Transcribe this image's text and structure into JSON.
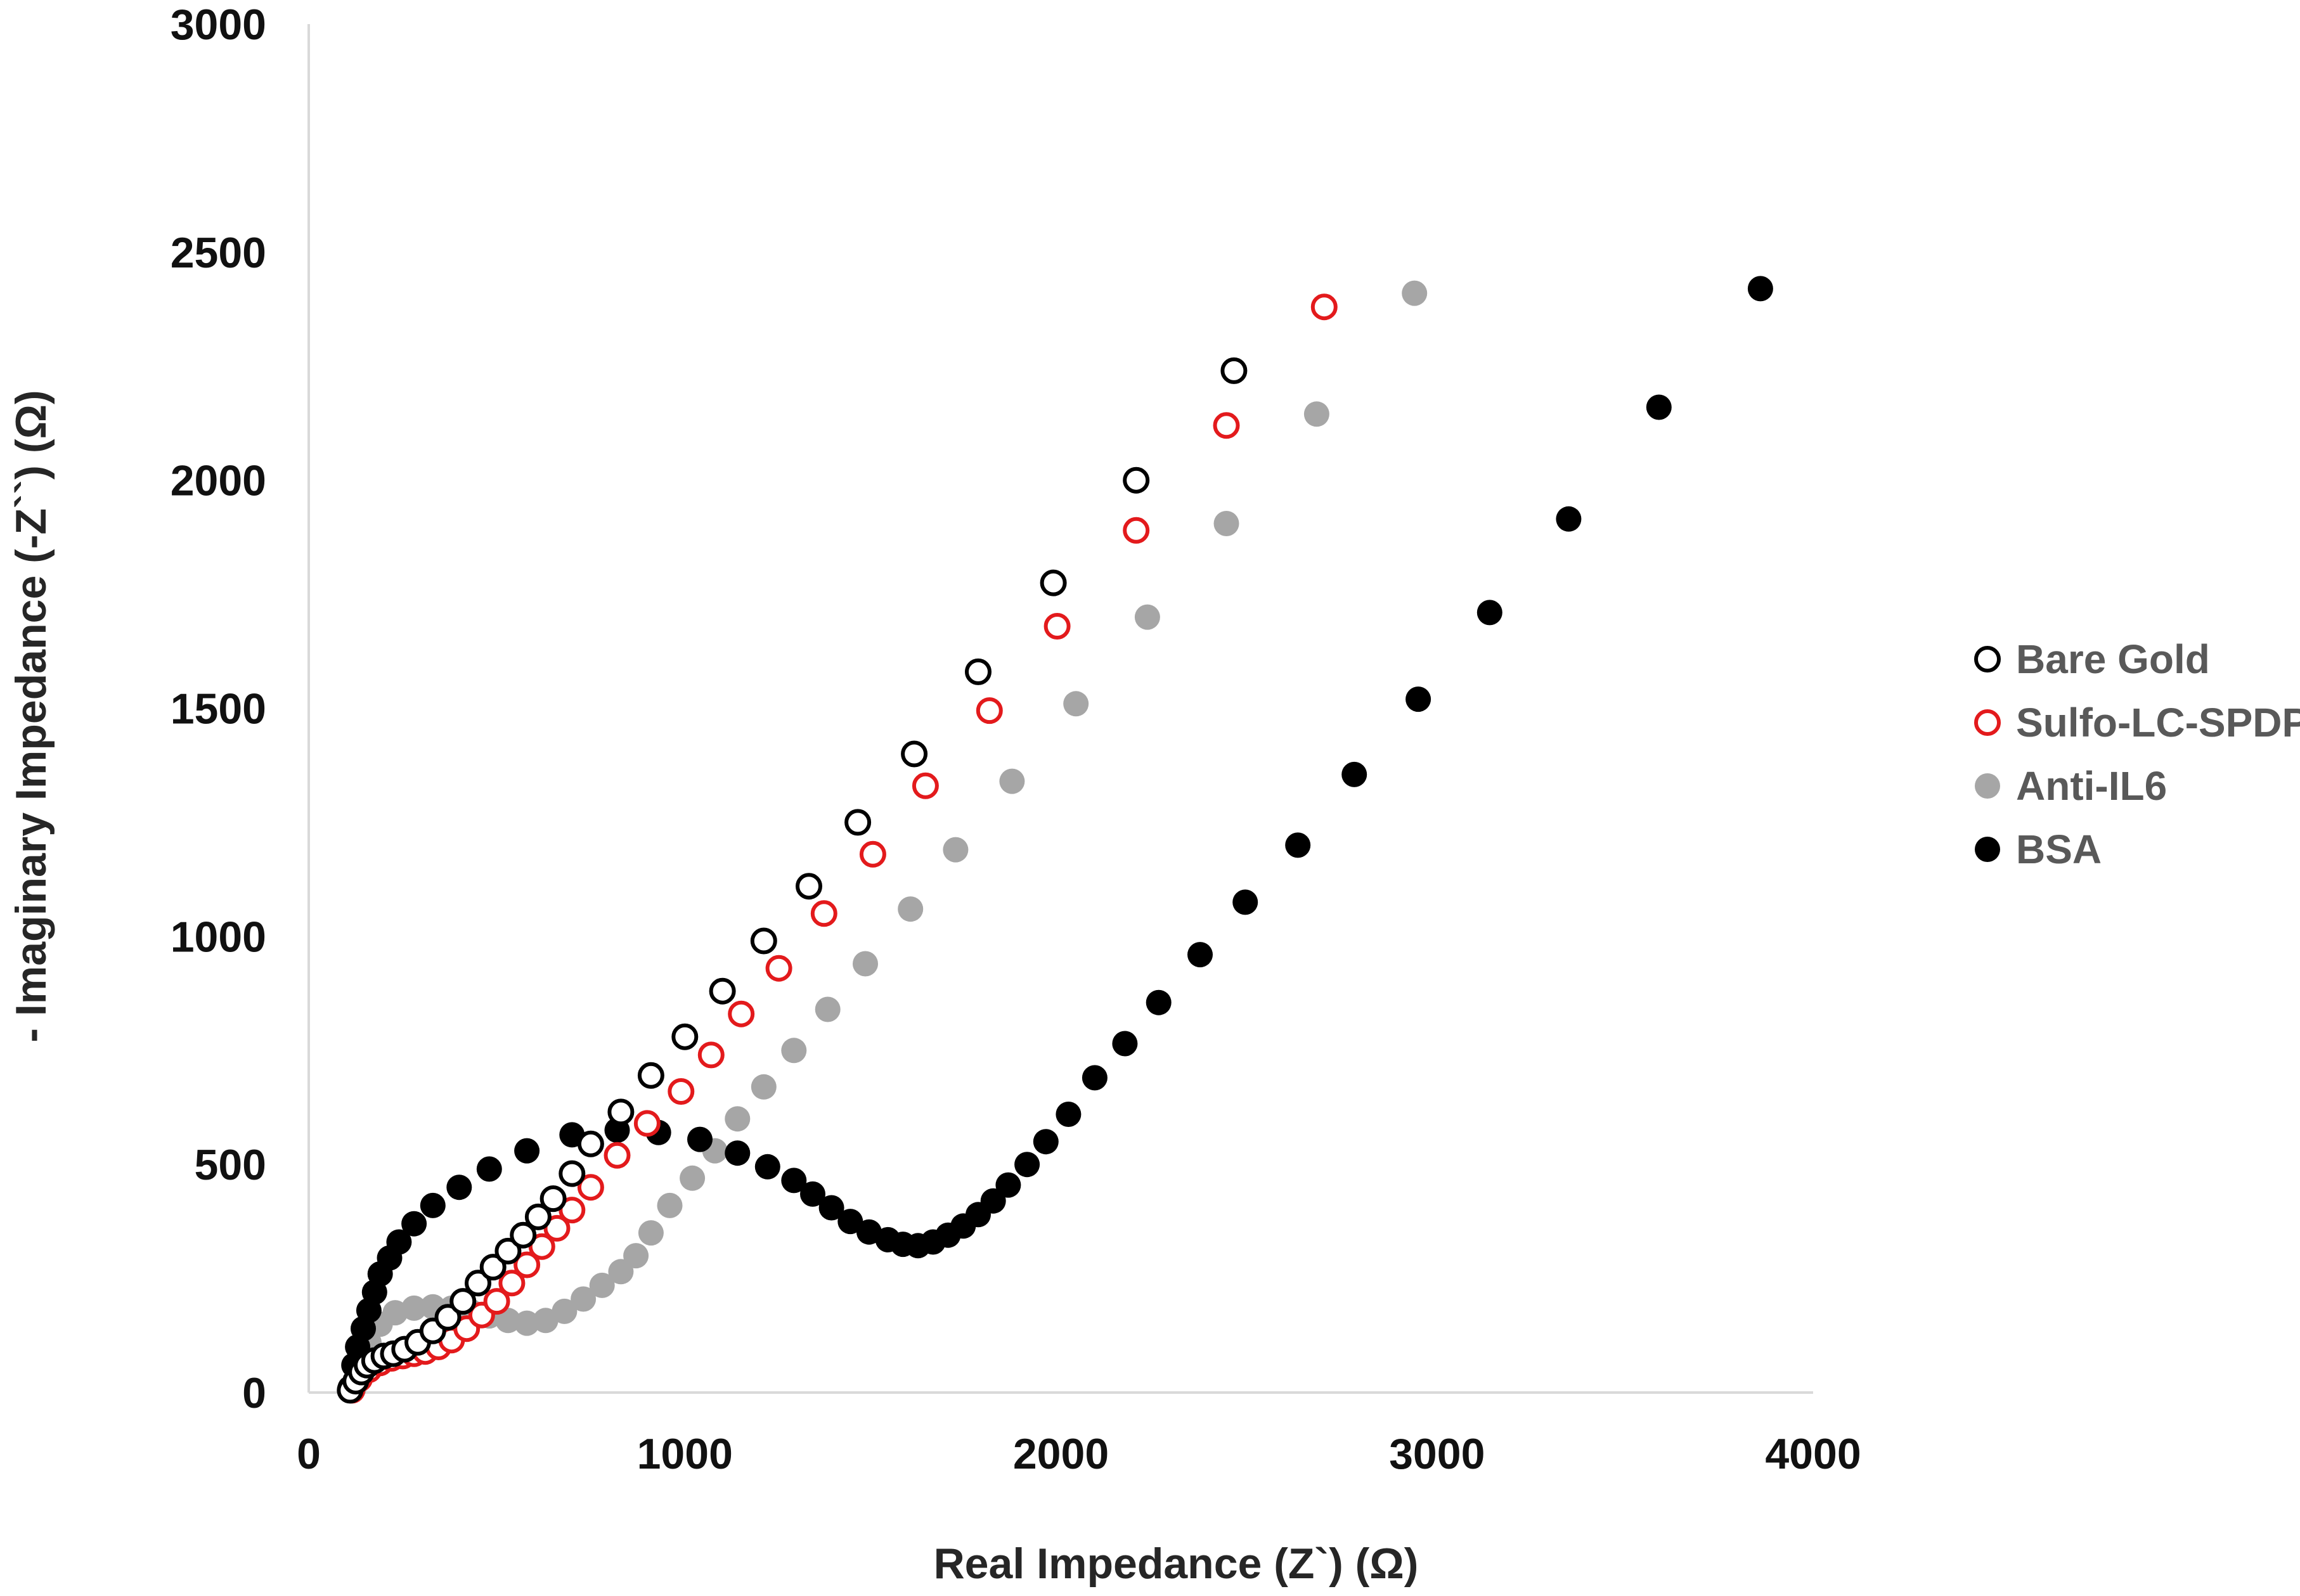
{
  "chart_data": {
    "type": "scatter",
    "title": "",
    "xlabel": "Real Impedance (Z`) (Ω)",
    "ylabel": "- Imaginary Impedance (-Z``) (Ω)",
    "xlim": [
      0,
      4000
    ],
    "ylim": [
      0,
      3000
    ],
    "xticks": [
      "0",
      "1000",
      "2000",
      "3000",
      "4000"
    ],
    "yticks": [
      "0",
      "500",
      "1000",
      "1500",
      "2000",
      "2500",
      "3000"
    ],
    "grid": false,
    "legend_position": "right",
    "series": [
      {
        "name": "Bare Gold",
        "marker": "open-circle",
        "color": "#000000",
        "points": [
          [
            110,
            5
          ],
          [
            125,
            25
          ],
          [
            140,
            45
          ],
          [
            155,
            60
          ],
          [
            175,
            70
          ],
          [
            200,
            80
          ],
          [
            225,
            85
          ],
          [
            255,
            95
          ],
          [
            290,
            110
          ],
          [
            330,
            135
          ],
          [
            370,
            165
          ],
          [
            410,
            200
          ],
          [
            450,
            240
          ],
          [
            490,
            275
          ],
          [
            530,
            310
          ],
          [
            570,
            345
          ],
          [
            610,
            385
          ],
          [
            650,
            425
          ],
          [
            700,
            480
          ],
          [
            750,
            545
          ],
          [
            830,
            615
          ],
          [
            910,
            695
          ],
          [
            1000,
            780
          ],
          [
            1100,
            880
          ],
          [
            1210,
            990
          ],
          [
            1330,
            1110
          ],
          [
            1460,
            1250
          ],
          [
            1610,
            1400
          ],
          [
            1780,
            1580
          ],
          [
            1980,
            1775
          ],
          [
            2200,
            2000
          ],
          [
            2460,
            2240
          ]
        ]
      },
      {
        "name": "Sulfo-LC-SPDP",
        "marker": "open-circle",
        "color": "#e31a1c",
        "points": [
          [
            115,
            5
          ],
          [
            135,
            30
          ],
          [
            160,
            50
          ],
          [
            190,
            65
          ],
          [
            220,
            75
          ],
          [
            250,
            80
          ],
          [
            280,
            85
          ],
          [
            310,
            90
          ],
          [
            345,
            100
          ],
          [
            380,
            115
          ],
          [
            420,
            140
          ],
          [
            460,
            170
          ],
          [
            500,
            200
          ],
          [
            540,
            240
          ],
          [
            580,
            280
          ],
          [
            620,
            320
          ],
          [
            660,
            360
          ],
          [
            700,
            400
          ],
          [
            750,
            450
          ],
          [
            820,
            520
          ],
          [
            900,
            590
          ],
          [
            990,
            660
          ],
          [
            1070,
            740
          ],
          [
            1150,
            830
          ],
          [
            1250,
            930
          ],
          [
            1370,
            1050
          ],
          [
            1500,
            1180
          ],
          [
            1640,
            1330
          ],
          [
            1810,
            1495
          ],
          [
            1990,
            1680
          ],
          [
            2200,
            1890
          ],
          [
            2440,
            2120
          ],
          [
            2700,
            2380
          ]
        ]
      },
      {
        "name": "Anti-IL6",
        "marker": "filled-circle",
        "color": "#a6a6a6",
        "points": [
          [
            120,
            10
          ],
          [
            140,
            60
          ],
          [
            160,
            110
          ],
          [
            190,
            150
          ],
          [
            230,
            175
          ],
          [
            280,
            185
          ],
          [
            330,
            188
          ],
          [
            380,
            185
          ],
          [
            430,
            178
          ],
          [
            480,
            168
          ],
          [
            530,
            158
          ],
          [
            580,
            152
          ],
          [
            630,
            158
          ],
          [
            680,
            178
          ],
          [
            730,
            205
          ],
          [
            780,
            235
          ],
          [
            830,
            265
          ],
          [
            870,
            300
          ],
          [
            910,
            350
          ],
          [
            960,
            410
          ],
          [
            1020,
            470
          ],
          [
            1080,
            530
          ],
          [
            1140,
            600
          ],
          [
            1210,
            670
          ],
          [
            1290,
            750
          ],
          [
            1380,
            840
          ],
          [
            1480,
            940
          ],
          [
            1600,
            1060
          ],
          [
            1720,
            1190
          ],
          [
            1870,
            1340
          ],
          [
            2040,
            1510
          ],
          [
            2230,
            1700
          ],
          [
            2440,
            1905
          ],
          [
            2680,
            2145
          ],
          [
            2940,
            2410
          ]
        ]
      },
      {
        "name": "BSA",
        "marker": "filled-circle",
        "color": "#000000",
        "points": [
          [
            110,
            10
          ],
          [
            120,
            60
          ],
          [
            130,
            100
          ],
          [
            145,
            140
          ],
          [
            160,
            180
          ],
          [
            175,
            220
          ],
          [
            190,
            260
          ],
          [
            215,
            295
          ],
          [
            240,
            330
          ],
          [
            280,
            370
          ],
          [
            330,
            410
          ],
          [
            400,
            450
          ],
          [
            480,
            490
          ],
          [
            580,
            530
          ],
          [
            700,
            565
          ],
          [
            820,
            575
          ],
          [
            930,
            570
          ],
          [
            1040,
            555
          ],
          [
            1140,
            525
          ],
          [
            1220,
            495
          ],
          [
            1290,
            465
          ],
          [
            1340,
            435
          ],
          [
            1390,
            405
          ],
          [
            1440,
            375
          ],
          [
            1490,
            352
          ],
          [
            1540,
            335
          ],
          [
            1580,
            325
          ],
          [
            1620,
            322
          ],
          [
            1660,
            330
          ],
          [
            1700,
            345
          ],
          [
            1740,
            365
          ],
          [
            1780,
            390
          ],
          [
            1820,
            420
          ],
          [
            1860,
            455
          ],
          [
            1910,
            500
          ],
          [
            1960,
            550
          ],
          [
            2020,
            610
          ],
          [
            2090,
            690
          ],
          [
            2170,
            765
          ],
          [
            2260,
            855
          ],
          [
            2370,
            960
          ],
          [
            2490,
            1075
          ],
          [
            2630,
            1200
          ],
          [
            2780,
            1355
          ],
          [
            2950,
            1520
          ],
          [
            3140,
            1710
          ],
          [
            3350,
            1915
          ],
          [
            3590,
            2160
          ],
          [
            3860,
            2420
          ]
        ]
      }
    ]
  }
}
